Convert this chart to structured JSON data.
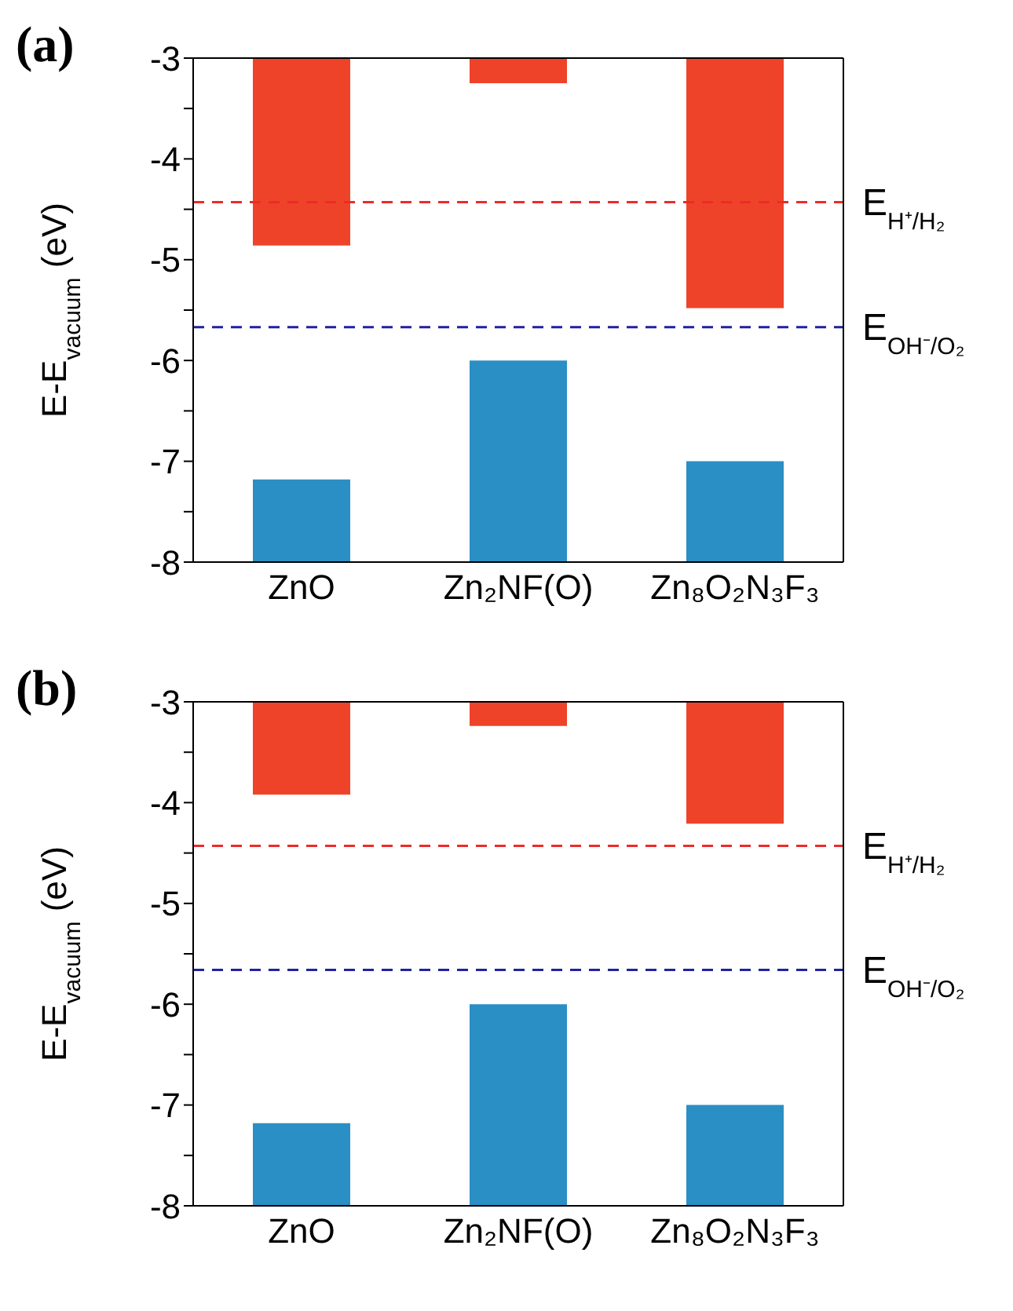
{
  "chart_data": [
    {
      "type": "bar",
      "title": "(a)",
      "ylabel": "E-E$_{vacuum}$ (eV)",
      "categories": [
        "ZnO",
        "Zn₂NF(O)",
        "Zn₈O₂N₃F₃"
      ],
      "ylim": [
        -8,
        -3
      ],
      "yticks": [
        -8,
        {
          "value": -7.5,
          "label": null
        },
        -7,
        {
          "value": -6.5,
          "label": null
        },
        -6,
        {
          "value": -5.5,
          "label": null
        },
        -5,
        {
          "value": -4.5,
          "label": null
        },
        -4,
        {
          "value": -3.5,
          "label": null
        },
        -3
      ],
      "series": [
        {
          "color": "#ee4329",
          "base": [
            -3,
            -3,
            -3
          ],
          "values": [
            -1.86,
            -0.25,
            -2.48
          ]
        },
        {
          "color": "#2a8fc4",
          "base": [
            -8,
            -8,
            -8
          ],
          "values": [
            0.82,
            2.0,
            1.0
          ]
        }
      ],
      "ref_lines": [
        {
          "axis": "y",
          "value": -4.43,
          "label": "E$_{H⁺/H₂}$",
          "color": "#ee2a2a",
          "line_style": "dashed"
        },
        {
          "axis": "y",
          "value": -5.67,
          "label": "E$_{OH⁻/O₂}$",
          "color": "#2222a0",
          "line_style": "dashed"
        }
      ]
    },
    {
      "type": "bar",
      "title": "(b)",
      "ylabel": "E-E$_{vacuum}$ (eV)",
      "categories": [
        "ZnO",
        "Zn₂NF(O)",
        "Zn₈O₂N₃F₃"
      ],
      "ylim": [
        -8,
        -3
      ],
      "yticks": [
        -8,
        {
          "value": -7.5,
          "label": null
        },
        -7,
        {
          "value": -6.5,
          "label": null
        },
        -6,
        {
          "value": -5.5,
          "label": null
        },
        -5,
        {
          "value": -4.5,
          "label": null
        },
        -4,
        {
          "value": -3.5,
          "label": null
        },
        -3
      ],
      "series": [
        {
          "color": "#ee4329",
          "base": [
            -3,
            -3,
            -3
          ],
          "values": [
            -0.92,
            -0.24,
            -1.21
          ]
        },
        {
          "color": "#2a8fc4",
          "base": [
            -8,
            -8,
            -8
          ],
          "values": [
            0.82,
            2.0,
            1.0
          ]
        }
      ],
      "ref_lines": [
        {
          "axis": "y",
          "value": -4.43,
          "label": "E$_{H⁺/H₂}$",
          "color": "#ee2a2a",
          "line_style": "dashed"
        },
        {
          "axis": "y",
          "value": -5.66,
          "label": "E$_{OH⁻/O₂}$",
          "color": "#2222a0",
          "line_style": "dashed"
        }
      ]
    }
  ]
}
